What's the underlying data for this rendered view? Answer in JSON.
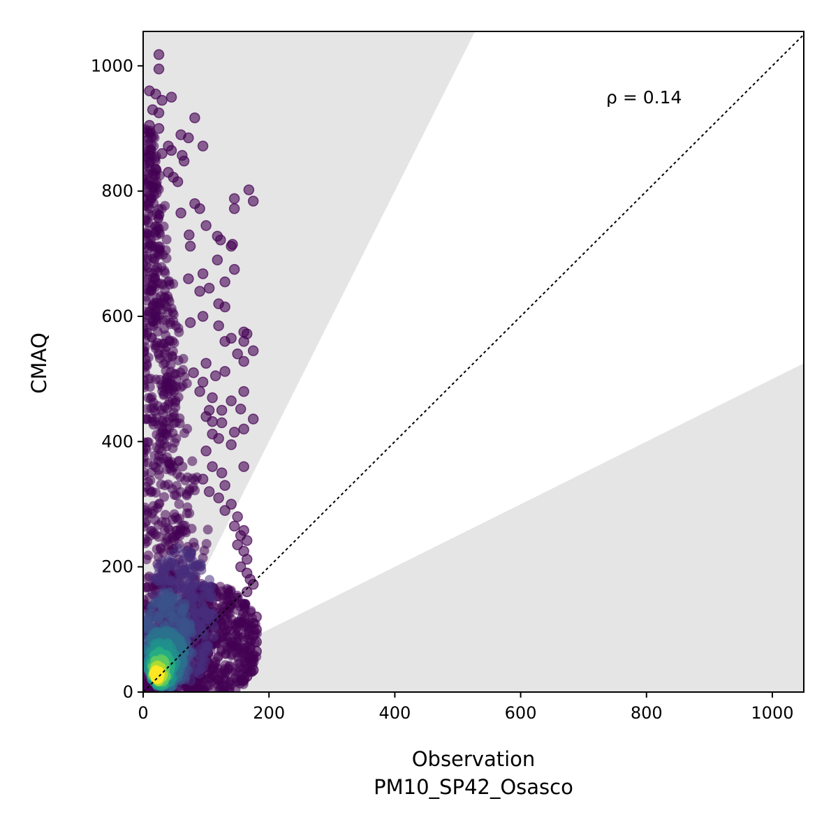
{
  "chart_data": {
    "type": "scatter",
    "title": "",
    "xlabel": "Observation",
    "xlabel_sub": "PM10_SP42_Osasco",
    "ylabel": "CMAQ",
    "xlim": [
      0,
      1050
    ],
    "ylim": [
      0,
      1055
    ],
    "xticks": [
      0,
      200,
      400,
      600,
      800,
      1000
    ],
    "yticks": [
      0,
      200,
      400,
      600,
      800,
      1000
    ],
    "grid": false,
    "legend": "none",
    "annotation": "ρ = 0.14",
    "reference_line": "1:1 dotted",
    "factor_of_two_band": "shaded outside y = x/2 .. y = 2x",
    "colormap": "viridis (point density)",
    "colors": {
      "low_density": "#440154",
      "mid_density": "#21918c",
      "high_density": "#fde725",
      "shade": "#e5e5e5"
    },
    "outlier_points": [
      [
        25,
        1018
      ],
      [
        25,
        995
      ],
      [
        10,
        960
      ],
      [
        20,
        955
      ],
      [
        45,
        950
      ],
      [
        30,
        945
      ],
      [
        15,
        930
      ],
      [
        25,
        925
      ],
      [
        82,
        917
      ],
      [
        10,
        905
      ],
      [
        25,
        900
      ],
      [
        60,
        890
      ],
      [
        72,
        885
      ],
      [
        95,
        872
      ],
      [
        40,
        872
      ],
      [
        45,
        865
      ],
      [
        30,
        860
      ],
      [
        62,
        857
      ],
      [
        65,
        848
      ],
      [
        20,
        835
      ],
      [
        40,
        830
      ],
      [
        48,
        822
      ],
      [
        55,
        815
      ],
      [
        20,
        810
      ],
      [
        168,
        802
      ],
      [
        145,
        788
      ],
      [
        175,
        784
      ],
      [
        145,
        772
      ],
      [
        82,
        780
      ],
      [
        90,
        772
      ],
      [
        60,
        765
      ],
      [
        100,
        745
      ],
      [
        118,
        728
      ],
      [
        123,
        722
      ],
      [
        73,
        730
      ],
      [
        75,
        712
      ],
      [
        142,
        715
      ],
      [
        140,
        712
      ],
      [
        118,
        690
      ],
      [
        145,
        675
      ],
      [
        95,
        668
      ],
      [
        72,
        660
      ],
      [
        130,
        655
      ],
      [
        105,
        645
      ],
      [
        90,
        640
      ],
      [
        120,
        620
      ],
      [
        130,
        615
      ],
      [
        95,
        600
      ],
      [
        75,
        590
      ],
      [
        120,
        585
      ],
      [
        160,
        575
      ],
      [
        165,
        572
      ],
      [
        140,
        565
      ],
      [
        130,
        560
      ],
      [
        160,
        560
      ],
      [
        175,
        545
      ],
      [
        150,
        540
      ],
      [
        160,
        528
      ],
      [
        100,
        525
      ],
      [
        130,
        512
      ],
      [
        80,
        510
      ],
      [
        115,
        505
      ],
      [
        95,
        495
      ],
      [
        90,
        480
      ],
      [
        160,
        480
      ],
      [
        110,
        470
      ],
      [
        140,
        465
      ],
      [
        105,
        450
      ],
      [
        155,
        452
      ],
      [
        125,
        450
      ],
      [
        100,
        440
      ],
      [
        110,
        432
      ],
      [
        175,
        436
      ],
      [
        125,
        430
      ],
      [
        160,
        420
      ],
      [
        110,
        412
      ],
      [
        145,
        415
      ],
      [
        120,
        405
      ],
      [
        140,
        395
      ],
      [
        100,
        385
      ],
      [
        160,
        360
      ],
      [
        110,
        360
      ],
      [
        125,
        350
      ],
      [
        95,
        340
      ],
      [
        130,
        330
      ],
      [
        105,
        320
      ],
      [
        120,
        310
      ],
      [
        140,
        300
      ],
      [
        130,
        290
      ],
      [
        150,
        280
      ],
      [
        145,
        265
      ],
      [
        160,
        258
      ],
      [
        155,
        250
      ],
      [
        165,
        242
      ],
      [
        150,
        235
      ],
      [
        160,
        225
      ],
      [
        165,
        212
      ],
      [
        155,
        200
      ],
      [
        165,
        190
      ],
      [
        170,
        180
      ],
      [
        175,
        172
      ],
      [
        165,
        160
      ],
      [
        180,
        120
      ],
      [
        175,
        110
      ],
      [
        180,
        100
      ],
      [
        175,
        90
      ],
      [
        180,
        80
      ],
      [
        170,
        70
      ],
      [
        180,
        65
      ],
      [
        170,
        55
      ],
      [
        165,
        45
      ],
      [
        175,
        35
      ],
      [
        165,
        25
      ],
      [
        160,
        22
      ]
    ]
  }
}
